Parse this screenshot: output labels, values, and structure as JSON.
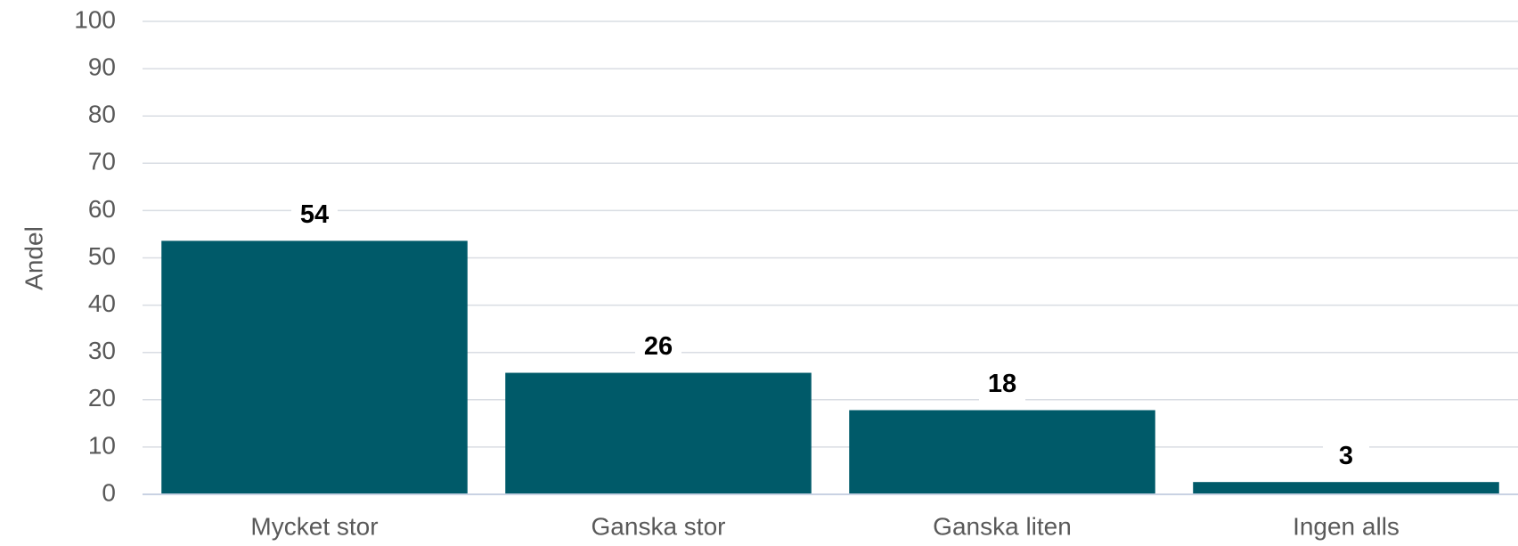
{
  "chart_data": {
    "type": "bar",
    "y_label": "Andel",
    "categories": [
      "Mycket stor",
      "Ganska stor",
      "Ganska liten",
      "Ingen alls"
    ],
    "values": [
      53.6,
      25.7,
      17.8,
      2.6
    ],
    "value_labels": [
      "54",
      "26",
      "18",
      "3"
    ],
    "color": "#005a69",
    "ylim": [
      0,
      100
    ],
    "yticks": [
      0,
      10,
      20,
      30,
      40,
      50,
      60,
      70,
      80,
      90,
      100
    ],
    "grid": true
  }
}
